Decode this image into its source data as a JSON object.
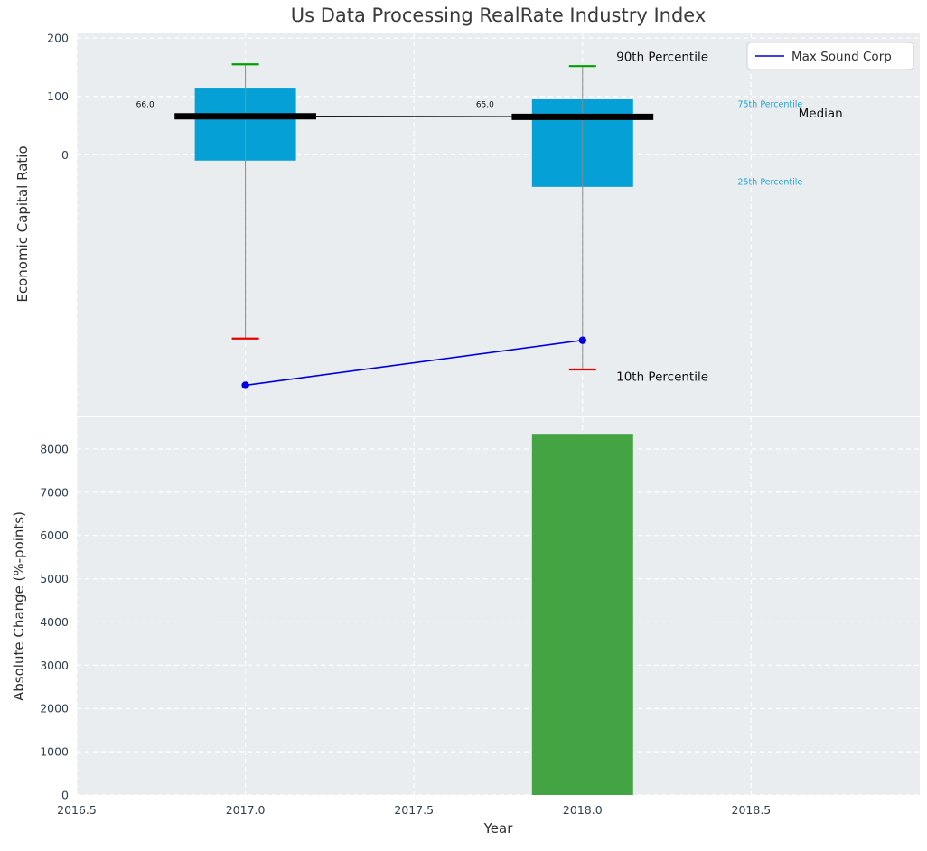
{
  "title": "Us Data Processing RealRate Industry Index",
  "colors": {
    "plot_bg": "#e9edf0",
    "grid": "#ffffff",
    "box_fill": "#05a0d6",
    "cap_green": "#00a000",
    "cap_red": "#e60000",
    "whisker": "#8a8a8a",
    "median": "#000000",
    "line_blue": "#0000e0",
    "tick_text": "#31404f"
  },
  "chart_data": [
    {
      "type": "box",
      "title": "Us Data Processing RealRate Industry Index",
      "ylabel": "Economic Capital Ratio",
      "ylim": [
        -447,
        208
      ],
      "yticks": [
        0,
        100,
        200
      ],
      "xlim": [
        2016.5,
        2019.0
      ],
      "grid": true,
      "legend": {
        "position": "upper right",
        "entries": [
          {
            "label": "Max Sound Corp",
            "color": "#0000e0"
          }
        ]
      },
      "boxes": [
        {
          "x": 2017,
          "p10": -315,
          "q1": -10,
          "median": 66.0,
          "q3": 115,
          "p90": 155,
          "median_label": "66.0"
        },
        {
          "x": 2018,
          "p10": -368,
          "q1": -55,
          "median": 65.0,
          "q3": 95,
          "p90": 152,
          "median_label": "65.0"
        }
      ],
      "series": [
        {
          "name": "Max Sound Corp",
          "type": "line",
          "x": [
            2017,
            2018
          ],
          "y": [
            -395,
            -318
          ]
        }
      ],
      "annotations": [
        {
          "text": "90th Percentile",
          "x": 2018.1,
          "y": 168,
          "size": 13.5,
          "color": "#111111",
          "anchor": "start"
        },
        {
          "text": "Median",
          "x": 2018.64,
          "y": 71,
          "size": 13.5,
          "color": "#111111",
          "anchor": "start"
        },
        {
          "text": "75th Percentile",
          "x": 2018.46,
          "y": 87,
          "size": 9.5,
          "color": "#21a5cc",
          "anchor": "start"
        },
        {
          "text": "25th Percentile",
          "x": 2018.46,
          "y": -46,
          "size": 9.5,
          "color": "#21a5cc",
          "anchor": "start"
        },
        {
          "text": "10th Percentile",
          "x": 2018.1,
          "y": -380,
          "size": 13.5,
          "color": "#111111",
          "anchor": "start"
        },
        {
          "text": "66.0",
          "x": 2016.676,
          "y": 87,
          "size": 9,
          "color": "#111111",
          "anchor": "start"
        },
        {
          "text": "65.0",
          "x": 2017.684,
          "y": 87,
          "size": 9,
          "color": "#111111",
          "anchor": "start"
        }
      ]
    },
    {
      "type": "bar",
      "ylabel": "Absolute Change (%-points)",
      "xlabel": "Year",
      "ylim": [
        0,
        8730
      ],
      "yticks": [
        0,
        1000,
        2000,
        3000,
        4000,
        5000,
        6000,
        7000,
        8000
      ],
      "xticks": [
        2016.5,
        2017.0,
        2017.5,
        2018.0,
        2018.5
      ],
      "xtick_labels": [
        "2016.5",
        "2017.0",
        "2017.5",
        "2018.0",
        "2018.5"
      ],
      "bars": [
        {
          "x": 2018,
          "value": 8350,
          "width": 0.3,
          "color": "#44a444"
        }
      ]
    }
  ]
}
